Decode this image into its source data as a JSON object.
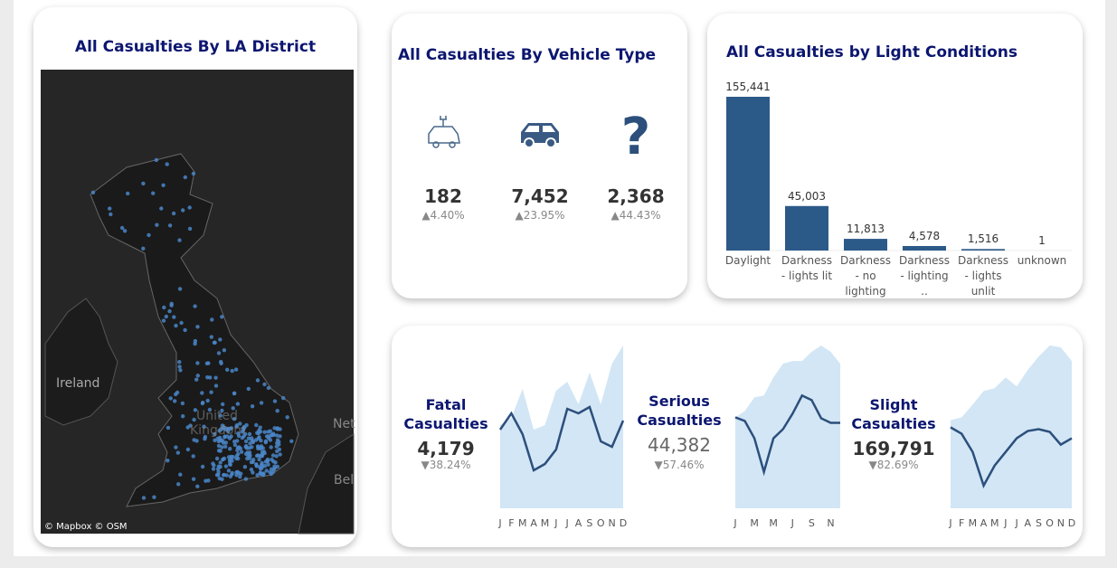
{
  "map": {
    "title": "All Casualties By LA District",
    "labels": [
      "Ireland",
      "United Kingdom",
      "Net",
      "Bel"
    ],
    "attribution": "© Mapbox © OSM"
  },
  "vehicle_type": {
    "title": "All Casualties By Vehicle Type",
    "items": [
      {
        "value": "182",
        "change": "▲4.40%"
      },
      {
        "value": "7,452",
        "change": "▲23.95%"
      },
      {
        "value": "2,368",
        "change": "▲44.43%"
      }
    ]
  },
  "light_conditions": {
    "title": "All Casualties by Light Conditions",
    "categories": [
      "Daylight",
      "Darkness - lights lit",
      "Darkness - no lighting",
      "Darkness - lighting ..",
      "Darkness - lights unlit",
      "unknown"
    ],
    "values": [
      155441,
      45003,
      11813,
      4578,
      1516,
      1
    ],
    "value_labels": [
      "155,441",
      "45,003",
      "11,813",
      "4,578",
      "1,516",
      "1"
    ],
    "color": "#2c5a88"
  },
  "trends": [
    {
      "title": "Fatal Casualties",
      "value": "4,179",
      "change": "▼38.24%",
      "months": [
        "J",
        "F",
        "M",
        "A",
        "M",
        "J",
        "J",
        "A",
        "S",
        "O",
        "N",
        "D"
      ],
      "line": [
        87,
        105,
        82,
        42,
        49,
        65,
        110,
        105,
        112,
        74,
        68,
        97
      ],
      "area": [
        92,
        100,
        132,
        87,
        92,
        130,
        140,
        115,
        150,
        115,
        160,
        180
      ]
    },
    {
      "title": "Serious Casualties",
      "value": "44,382",
      "change": "▼57.46%",
      "months": [
        "J",
        "M",
        "M",
        "J",
        "S",
        "N"
      ],
      "line": [
        100,
        96,
        77,
        40,
        77,
        87,
        104,
        124,
        119,
        99,
        94,
        94
      ],
      "area": [
        100,
        107,
        122,
        124,
        144,
        159,
        162,
        162,
        172,
        179,
        172,
        159
      ]
    },
    {
      "title": "Slight Casualties",
      "value": "169,791",
      "change": "▼82.69%",
      "months": [
        "J",
        "F",
        "M",
        "A",
        "M",
        "J",
        "J",
        "A",
        "S",
        "O",
        "N",
        "D"
      ],
      "line": [
        89,
        82,
        62,
        25,
        47,
        62,
        77,
        85,
        87,
        84,
        70,
        77
      ],
      "area": [
        97,
        100,
        114,
        129,
        132,
        144,
        134,
        152,
        167,
        179,
        177,
        162
      ]
    }
  ]
}
